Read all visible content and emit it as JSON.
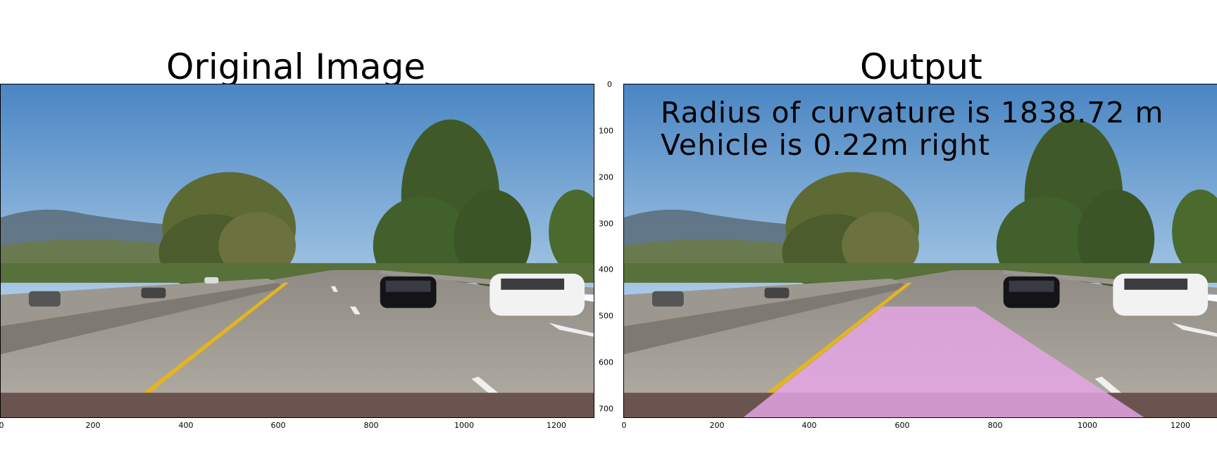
{
  "figure": {
    "left_title": "Original Image",
    "right_title": "Output"
  },
  "overlay": {
    "line1": "Radius of curvature is 1838.72 m",
    "line2": "Vehicle is 0.22m right"
  },
  "axes": {
    "x_ticks": [
      "0",
      "200",
      "400",
      "600",
      "800",
      "1000",
      "1200"
    ],
    "y_ticks": [
      "0",
      "100",
      "200",
      "300",
      "400",
      "500",
      "600",
      "700"
    ],
    "x_range": [
      0,
      1280
    ],
    "y_range": [
      0,
      720
    ]
  },
  "colors": {
    "sky": "#5a95cf",
    "road": "#a8a39a",
    "lane_fill": "#e7a6e8",
    "yellow_line": "#e6b41e",
    "trees": "#4a5a2e"
  }
}
